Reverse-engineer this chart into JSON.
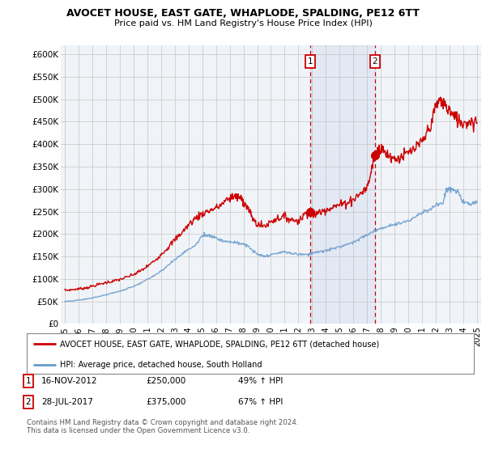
{
  "title": "AVOCET HOUSE, EAST GATE, WHAPLODE, SPALDING, PE12 6TT",
  "subtitle": "Price paid vs. HM Land Registry's House Price Index (HPI)",
  "legend_line1": "AVOCET HOUSE, EAST GATE, WHAPLODE, SPALDING, PE12 6TT (detached house)",
  "legend_line2": "HPI: Average price, detached house, South Holland",
  "transaction1_date": "16-NOV-2012",
  "transaction1_price": "£250,000",
  "transaction1_hpi": "49% ↑ HPI",
  "transaction2_date": "28-JUL-2017",
  "transaction2_price": "£375,000",
  "transaction2_hpi": "67% ↑ HPI",
  "footer": "Contains HM Land Registry data © Crown copyright and database right 2024.\nThis data is licensed under the Open Government Licence v3.0.",
  "ylim_min": 0,
  "ylim_max": 620000,
  "yticks": [
    0,
    50000,
    100000,
    150000,
    200000,
    250000,
    300000,
    350000,
    400000,
    450000,
    500000,
    550000,
    600000
  ],
  "ytick_labels": [
    "£0",
    "£50K",
    "£100K",
    "£150K",
    "£200K",
    "£250K",
    "£300K",
    "£350K",
    "£400K",
    "£450K",
    "£500K",
    "£550K",
    "£600K"
  ],
  "red_color": "#cc0000",
  "blue_color": "#6699cc",
  "bg_color": "#ffffff",
  "plot_bg_color": "#f0f4f8",
  "grid_color": "#cccccc",
  "marker1_x": 2012.88,
  "marker1_y": 250000,
  "marker2_x": 2017.57,
  "marker2_y": 375000,
  "vline1_x": 2012.88,
  "vline2_x": 2017.57,
  "shade_xmin": 2012.88,
  "shade_xmax": 2017.57,
  "xmin": 1994.7,
  "xmax": 2025.3,
  "xticks": [
    1995,
    1996,
    1997,
    1998,
    1999,
    2000,
    2001,
    2002,
    2003,
    2004,
    2005,
    2006,
    2007,
    2008,
    2009,
    2010,
    2011,
    2012,
    2013,
    2014,
    2015,
    2016,
    2017,
    2018,
    2019,
    2020,
    2021,
    2022,
    2023,
    2024,
    2025
  ]
}
